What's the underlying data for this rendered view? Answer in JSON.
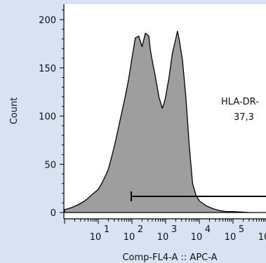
{
  "chart_data": {
    "type": "area",
    "title": "",
    "xlabel": "Comp-FL4-A :: APC-A",
    "ylabel": "Count",
    "x_scale": "log",
    "xlim_decades": [
      0,
      6
    ],
    "ylim": [
      0,
      210
    ],
    "y_ticks": [
      0,
      50,
      100,
      150,
      200
    ],
    "x_ticks": [
      {
        "base": "10",
        "exp": "1"
      },
      {
        "base": "10",
        "exp": "2"
      },
      {
        "base": "10",
        "exp": "3"
      },
      {
        "base": "10",
        "exp": "4"
      },
      {
        "base": "10",
        "exp": "5"
      },
      {
        "base": "10",
        "exp": "6"
      },
      {
        "base": "10",
        "exp": ""
      }
    ],
    "series": [
      {
        "x_decade": [
          0.0,
          0.2,
          0.4,
          0.6,
          0.8,
          1.0,
          1.1,
          1.2,
          1.3,
          1.4,
          1.5,
          1.6,
          1.7,
          1.8,
          1.9,
          2.0,
          2.1,
          2.2,
          2.3,
          2.4,
          2.5,
          2.55,
          2.6,
          2.7,
          2.8,
          2.9,
          2.95,
          3.0,
          3.1,
          3.2,
          3.3,
          3.35,
          3.4,
          3.5,
          3.6,
          3.7,
          3.8,
          3.9,
          4.0,
          4.2,
          4.4,
          4.6,
          4.8,
          5.0,
          5.5,
          6.0
        ],
        "y": [
          3,
          5,
          8,
          12,
          18,
          24,
          30,
          37,
          45,
          58,
          72,
          88,
          104,
          120,
          138,
          160,
          181,
          183,
          172,
          186,
          183,
          168,
          158,
          140,
          120,
          108,
          113,
          120,
          140,
          165,
          180,
          188,
          180,
          158,
          120,
          70,
          30,
          18,
          12,
          7,
          4,
          2,
          1,
          1,
          0,
          0
        ]
      }
    ],
    "gates": [
      {
        "name": "HLA-DR-",
        "value": "37,3",
        "x_start_decade": 2.0
      }
    ]
  }
}
